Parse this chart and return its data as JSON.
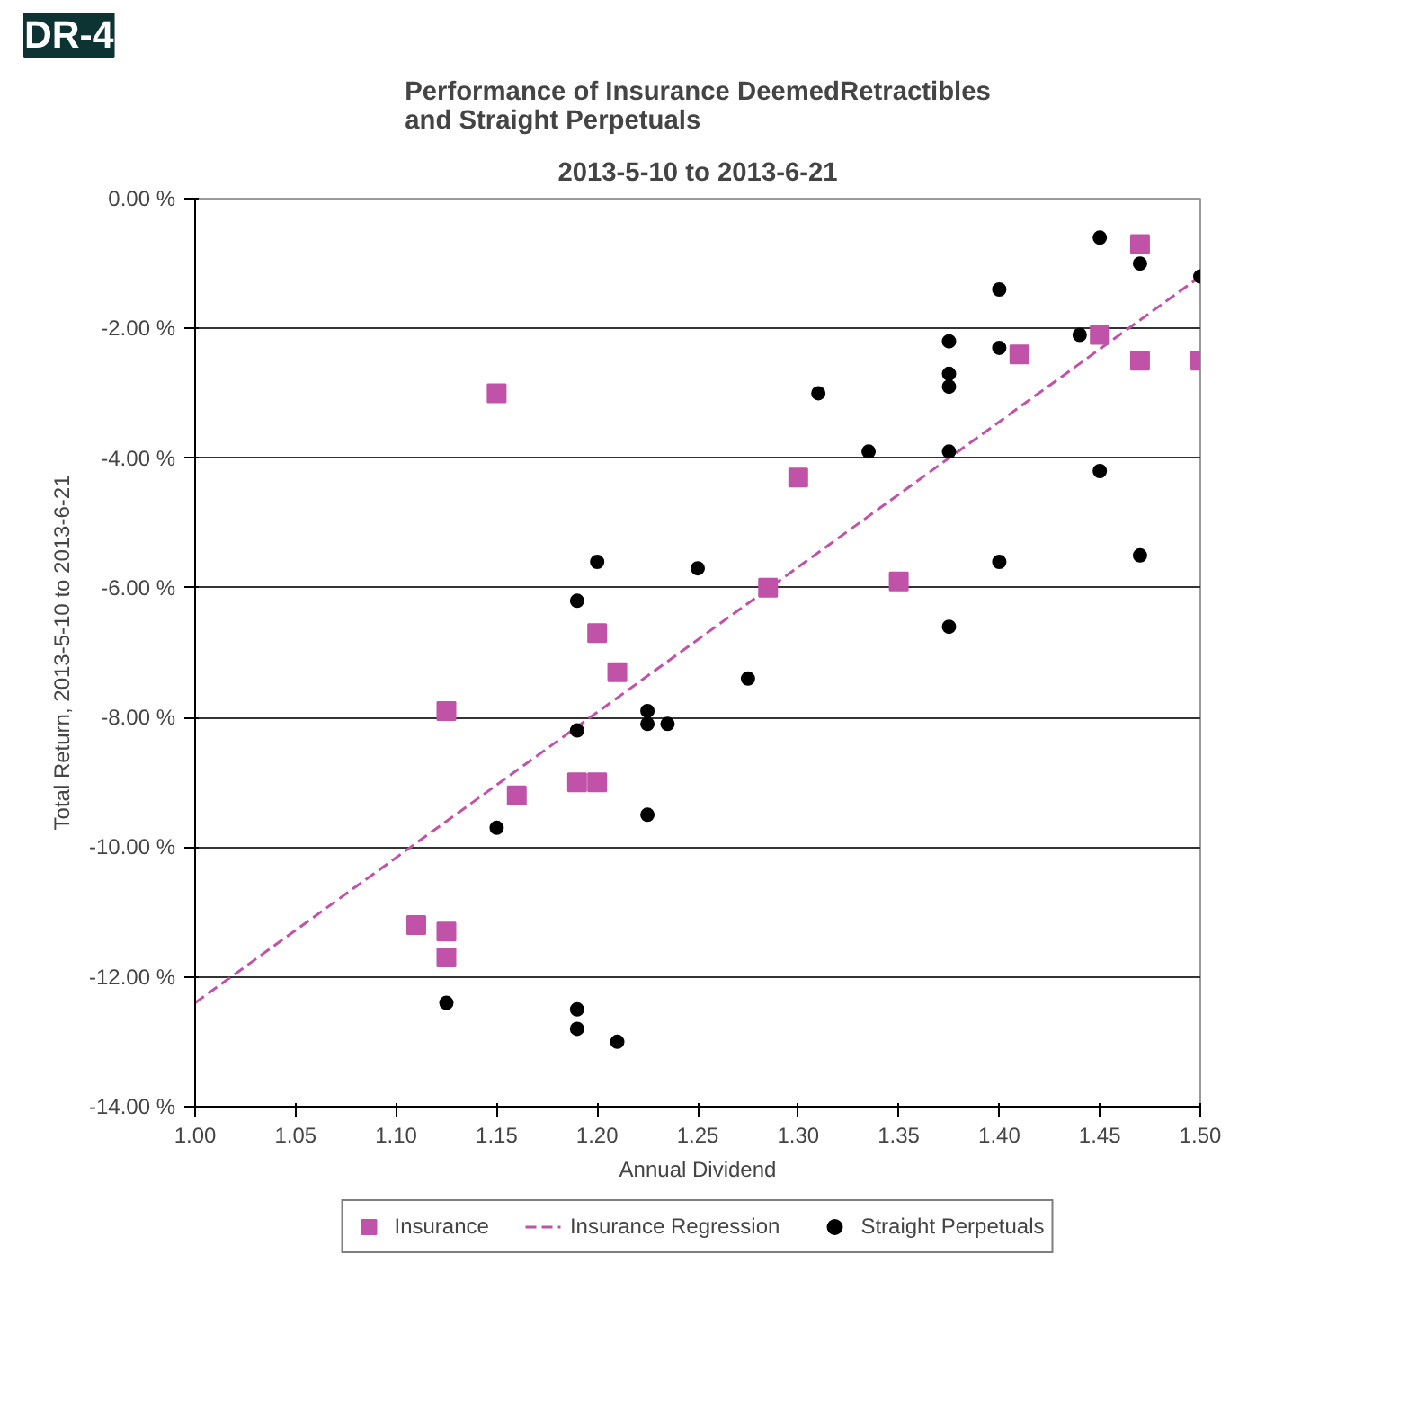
{
  "chart_data": {
    "type": "scatter",
    "title": "Performance of Insurance DeemedRetractibles\nand Straight Perpetuals",
    "subtitle": "2013-5-10 to 2013-6-21",
    "xlabel": "Annual Dividend",
    "ylabel": "Total Return, 2013-5-10 to 2013-6-21",
    "annotations": [
      "DR-4"
    ],
    "xlim": [
      1.0,
      1.5
    ],
    "xticks": [
      {
        "value": 1.0,
        "label": "1.00"
      },
      1.05,
      {
        "value": 1.1,
        "label": "1.10"
      },
      1.15,
      {
        "value": 1.2,
        "label": "1.20"
      },
      1.25,
      {
        "value": 1.3,
        "label": "1.30"
      },
      1.35,
      {
        "value": 1.4,
        "label": "1.40"
      },
      1.45,
      {
        "value": 1.5,
        "label": "1.50"
      }
    ],
    "ylim": [
      -14,
      0
    ],
    "yticks": [
      {
        "value": -14,
        "label": "-14.00 %"
      },
      {
        "value": -12,
        "label": "-12.00 %"
      },
      {
        "value": -10,
        "label": "-10.00 %"
      },
      {
        "value": -8,
        "label": "-8.00 %"
      },
      {
        "value": -6,
        "label": "-6.00 %"
      },
      {
        "value": -4,
        "label": "-4.00 %"
      },
      {
        "value": -2,
        "label": "-2.00 %"
      },
      {
        "value": 0,
        "label": "0.00 %"
      }
    ],
    "grid": "y",
    "legend": "bottom",
    "series": [
      {
        "name": "Insurance",
        "type": "scatter",
        "marker": "square",
        "color": "#c052a8",
        "x": [
          1.15,
          1.125,
          1.11,
          1.125,
          1.125,
          1.16,
          1.19,
          1.2,
          1.21,
          1.2,
          1.3,
          1.285,
          1.35,
          1.41,
          1.45,
          1.47,
          1.47,
          1.5
        ],
        "values": [
          -3.0,
          -7.9,
          -11.2,
          -11.3,
          -11.7,
          -9.2,
          -9.0,
          -9.0,
          -7.3,
          -6.7,
          -4.3,
          -6.0,
          -5.9,
          -2.4,
          -2.1,
          -0.7,
          -2.5,
          -2.5
        ]
      },
      {
        "name": "Insurance Regression",
        "type": "line",
        "line_style": "dashed",
        "marker": "none",
        "color": "#c052a8",
        "x": [
          1.0,
          1.5
        ],
        "values": [
          -12.4,
          -1.2
        ]
      },
      {
        "name": "Straight Perpetuals",
        "type": "scatter",
        "marker": "circle",
        "color": "#000000",
        "x": [
          1.2,
          1.19,
          1.25,
          1.275,
          1.31,
          1.335,
          1.375,
          1.375,
          1.375,
          1.375,
          1.375,
          1.4,
          1.4,
          1.4,
          1.44,
          1.45,
          1.45,
          1.47,
          1.47,
          1.5,
          1.15,
          1.19,
          1.225,
          1.225,
          1.235,
          1.225,
          1.125,
          1.19,
          1.19,
          1.21
        ],
        "values": [
          -5.6,
          -6.2,
          -5.7,
          -7.4,
          -3.0,
          -3.9,
          -2.2,
          -2.7,
          -2.9,
          -3.9,
          -6.6,
          -1.4,
          -2.3,
          -5.6,
          -2.1,
          -0.6,
          -4.2,
          -1.0,
          -5.5,
          -1.2,
          -9.7,
          -8.2,
          -7.9,
          -8.1,
          -8.1,
          -9.5,
          -12.4,
          -12.5,
          -12.8,
          -13.0
        ]
      }
    ]
  }
}
